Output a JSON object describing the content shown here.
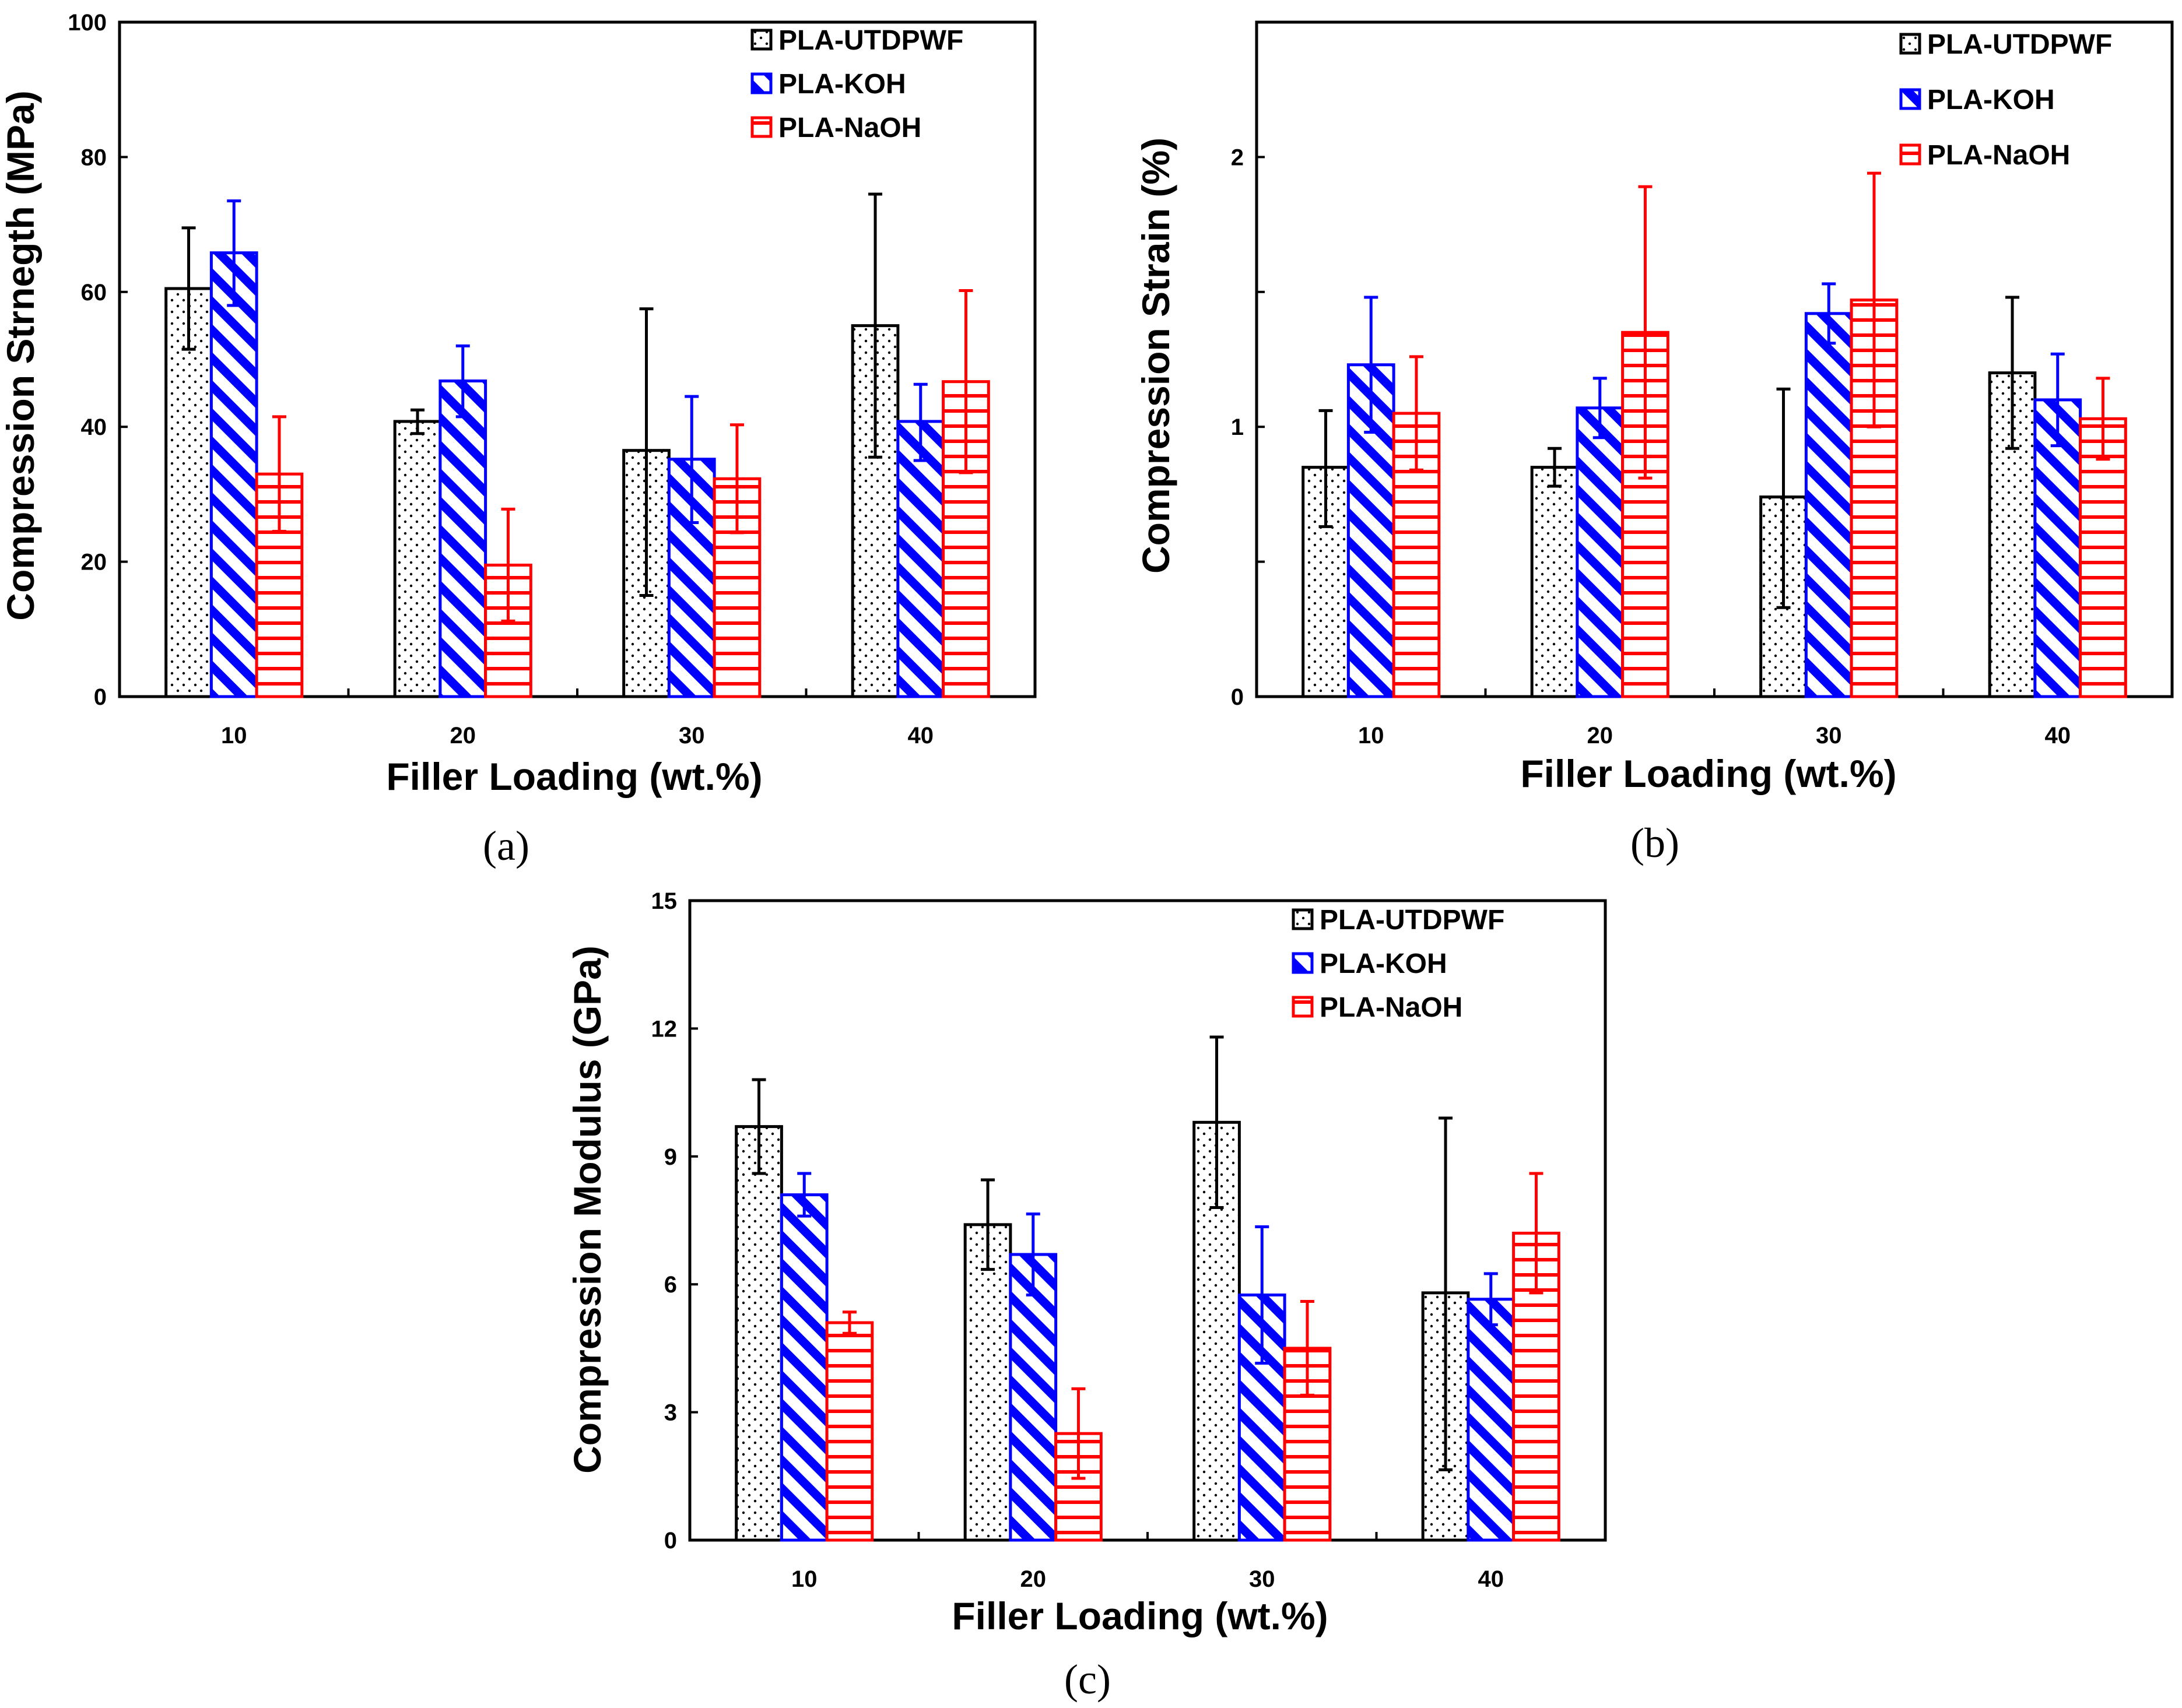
{
  "colors": {
    "s0": "#000000",
    "s1": "#0000ff",
    "s2": "#ff0000"
  },
  "chart_data": [
    {
      "type": "bar",
      "panel_label": "(a)",
      "categories": [
        "10",
        "20",
        "30",
        "40"
      ],
      "xlabel": "Filler Loading (wt.%)",
      "ylabel": "Compression Strnegth (MPa)",
      "ylim": [
        0,
        100
      ],
      "yticks": [
        0,
        20,
        40,
        60,
        80,
        100
      ],
      "ytick_labels": [
        "0",
        "20",
        "40",
        "60",
        "80",
        "100"
      ],
      "legend_position": "top-right",
      "series": [
        {
          "name": "PLA-UTDPWF",
          "values": [
            60.5,
            40.8,
            36.5,
            55.0
          ],
          "err_upper": [
            69.5,
            42.5,
            57.5,
            74.5
          ],
          "err_lower": [
            51.5,
            39.0,
            15.0,
            35.5
          ]
        },
        {
          "name": "PLA-KOH",
          "values": [
            65.8,
            46.8,
            35.2,
            40.8
          ],
          "err_upper": [
            73.5,
            52.0,
            44.5,
            46.3
          ],
          "err_lower": [
            58.0,
            41.5,
            25.8,
            35.0
          ]
        },
        {
          "name": "PLA-NaOH",
          "values": [
            33.0,
            19.5,
            32.3,
            46.7
          ],
          "err_upper": [
            41.5,
            27.8,
            40.3,
            60.2
          ],
          "err_lower": [
            24.5,
            11.2,
            24.3,
            33.2
          ]
        }
      ]
    },
    {
      "type": "bar",
      "panel_label": "(b)",
      "categories": [
        "10",
        "20",
        "30",
        "40"
      ],
      "xlabel": "Filler Loading (wt.%)",
      "ylabel": "Compression Strain (%)",
      "ylim": [
        0,
        2.5
      ],
      "yticks": [
        0,
        0.5,
        1,
        1.5,
        2,
        2.5
      ],
      "ytick_labels": [
        "0",
        "",
        "1",
        "",
        "2",
        ""
      ],
      "legend_position": "top-right",
      "series": [
        {
          "name": "PLA-UTDPWF",
          "values": [
            0.85,
            0.85,
            0.74,
            1.2
          ],
          "err_upper": [
            1.06,
            0.92,
            1.14,
            1.48
          ],
          "err_lower": [
            0.63,
            0.78,
            0.33,
            0.92
          ]
        },
        {
          "name": "PLA-KOH",
          "values": [
            1.23,
            1.07,
            1.42,
            1.1
          ],
          "err_upper": [
            1.48,
            1.18,
            1.53,
            1.27
          ],
          "err_lower": [
            0.98,
            0.96,
            1.31,
            0.93
          ]
        },
        {
          "name": "PLA-NaOH",
          "values": [
            1.05,
            1.35,
            1.47,
            1.03
          ],
          "err_upper": [
            1.26,
            1.89,
            1.94,
            1.18
          ],
          "err_lower": [
            0.84,
            0.81,
            1.0,
            0.88
          ]
        }
      ]
    },
    {
      "type": "bar",
      "panel_label": "(c)",
      "categories": [
        "10",
        "20",
        "30",
        "40"
      ],
      "xlabel": "Filler Loading (wt.%)",
      "ylabel": "Compression Modulus (GPa)",
      "ylim": [
        0,
        15
      ],
      "yticks": [
        0,
        3,
        6,
        9,
        12,
        15
      ],
      "ytick_labels": [
        "0",
        "3",
        "6",
        "9",
        "12",
        "15"
      ],
      "legend_position": "top-right",
      "series": [
        {
          "name": "PLA-UTDPWF",
          "values": [
            9.7,
            7.4,
            9.8,
            5.8
          ],
          "err_upper": [
            10.8,
            8.45,
            11.8,
            9.9
          ],
          "err_lower": [
            8.6,
            6.35,
            7.8,
            1.65
          ]
        },
        {
          "name": "PLA-KOH",
          "values": [
            8.1,
            6.7,
            5.75,
            5.65
          ],
          "err_upper": [
            8.6,
            7.65,
            7.35,
            6.25
          ],
          "err_lower": [
            7.6,
            5.75,
            4.15,
            5.05
          ]
        },
        {
          "name": "PLA-NaOH",
          "values": [
            5.1,
            2.5,
            4.5,
            7.2
          ],
          "err_upper": [
            5.35,
            3.55,
            5.6,
            8.6
          ],
          "err_lower": [
            4.85,
            1.45,
            3.4,
            5.8
          ]
        }
      ]
    }
  ]
}
